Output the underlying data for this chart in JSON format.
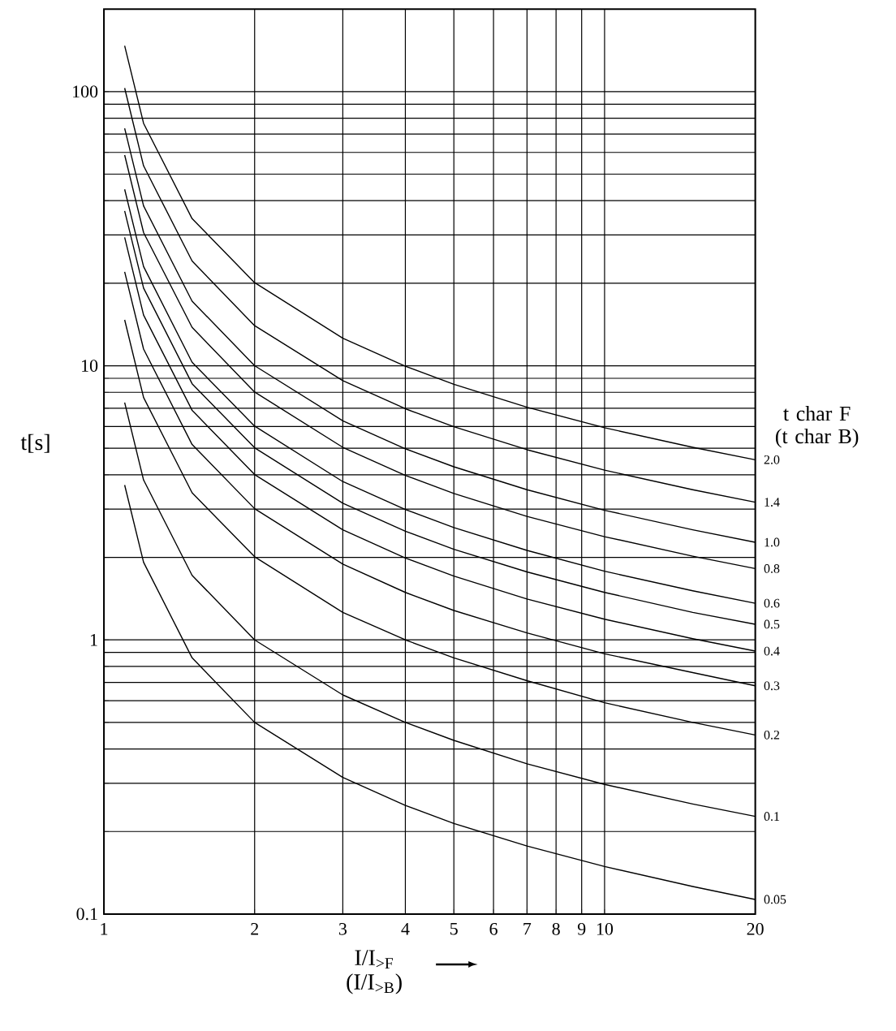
{
  "chart_data": {
    "type": "line",
    "xlabel": "I/I$_{>F}$ (I/I$_{>B}$)",
    "ylabel": "t[s]",
    "legend_title": "t char F (t char B)",
    "log": "xy",
    "grid": true,
    "marker": "none",
    "line_style": "solid",
    "xlim": [
      1,
      20
    ],
    "ylim": [
      0.1,
      200
    ],
    "xticks": [
      1,
      2,
      3,
      4,
      5,
      6,
      7,
      8,
      9,
      10,
      20
    ],
    "yticks": [
      0.1,
      {
        "value": 0.2,
        "label": null
      },
      {
        "value": 0.3,
        "label": null
      },
      {
        "value": 0.4,
        "label": null
      },
      {
        "value": 0.5,
        "label": null
      },
      {
        "value": 0.6,
        "label": null
      },
      {
        "value": 0.7,
        "label": null
      },
      {
        "value": 0.8,
        "label": null
      },
      {
        "value": 0.9,
        "label": null
      },
      1,
      {
        "value": 2,
        "label": null
      },
      {
        "value": 3,
        "label": null
      },
      {
        "value": 4,
        "label": null
      },
      {
        "value": 5,
        "label": null
      },
      {
        "value": 6,
        "label": null
      },
      {
        "value": 7,
        "label": null
      },
      {
        "value": 8,
        "label": null
      },
      {
        "value": 9,
        "label": null
      },
      10,
      {
        "value": 20,
        "label": null
      },
      {
        "value": 30,
        "label": null
      },
      {
        "value": 40,
        "label": null
      },
      {
        "value": 50,
        "label": null
      },
      {
        "value": 60,
        "label": null
      },
      {
        "value": 70,
        "label": null
      },
      {
        "value": 80,
        "label": null
      },
      {
        "value": 90,
        "label": null
      },
      100
    ],
    "x": [
      1.1,
      1.2,
      1.5,
      2,
      3,
      4,
      5,
      7,
      10,
      15,
      20
    ],
    "series": [
      {
        "name": "0.05",
        "color": "#000000",
        "values": [
          3.67,
          1.92,
          0.86,
          0.5,
          0.315,
          0.249,
          0.214,
          0.177,
          0.149,
          0.126,
          0.113
        ]
      },
      {
        "name": "0.1",
        "color": "#000000",
        "values": [
          7.34,
          3.83,
          1.72,
          1.0,
          0.63,
          0.5,
          0.43,
          0.353,
          0.297,
          0.252,
          0.227
        ]
      },
      {
        "name": "0.2",
        "color": "#000000",
        "values": [
          14.7,
          7.66,
          3.44,
          2.01,
          1.26,
          1.0,
          0.86,
          0.71,
          0.59,
          0.5,
          0.45
        ]
      },
      {
        "name": "0.3",
        "color": "#000000",
        "values": [
          22.0,
          11.5,
          5.16,
          3.01,
          1.89,
          1.49,
          1.28,
          1.06,
          0.89,
          0.76,
          0.68
        ]
      },
      {
        "name": "0.4",
        "color": "#000000",
        "values": [
          29.4,
          15.3,
          6.88,
          4.01,
          2.52,
          1.99,
          1.71,
          1.41,
          1.19,
          1.01,
          0.91
        ]
      },
      {
        "name": "0.5",
        "color": "#000000",
        "values": [
          36.7,
          19.2,
          8.6,
          5.02,
          3.15,
          2.49,
          2.14,
          1.77,
          1.49,
          1.26,
          1.14
        ]
      },
      {
        "name": "0.6",
        "color": "#000000",
        "values": [
          44.0,
          23.0,
          10.3,
          6.02,
          3.78,
          2.99,
          2.57,
          2.12,
          1.78,
          1.51,
          1.36
        ]
      },
      {
        "name": "0.8",
        "color": "#000000",
        "values": [
          58.7,
          30.6,
          13.8,
          8.02,
          5.04,
          3.98,
          3.42,
          2.82,
          2.38,
          2.02,
          1.82
        ]
      },
      {
        "name": "1.0",
        "color": "#000000",
        "values": [
          73.4,
          38.3,
          17.2,
          10.0,
          6.3,
          4.98,
          4.28,
          3.53,
          2.97,
          2.52,
          2.27
        ]
      },
      {
        "name": "1.4",
        "color": "#000000",
        "values": [
          103,
          53.6,
          24.1,
          14.0,
          8.82,
          6.97,
          5.99,
          4.94,
          4.16,
          3.53,
          3.18
        ]
      },
      {
        "name": "2.0",
        "color": "#000000",
        "values": [
          147,
          76.6,
          34.4,
          20.1,
          12.6,
          9.96,
          8.56,
          7.06,
          5.94,
          5.04,
          4.54
        ]
      }
    ]
  }
}
